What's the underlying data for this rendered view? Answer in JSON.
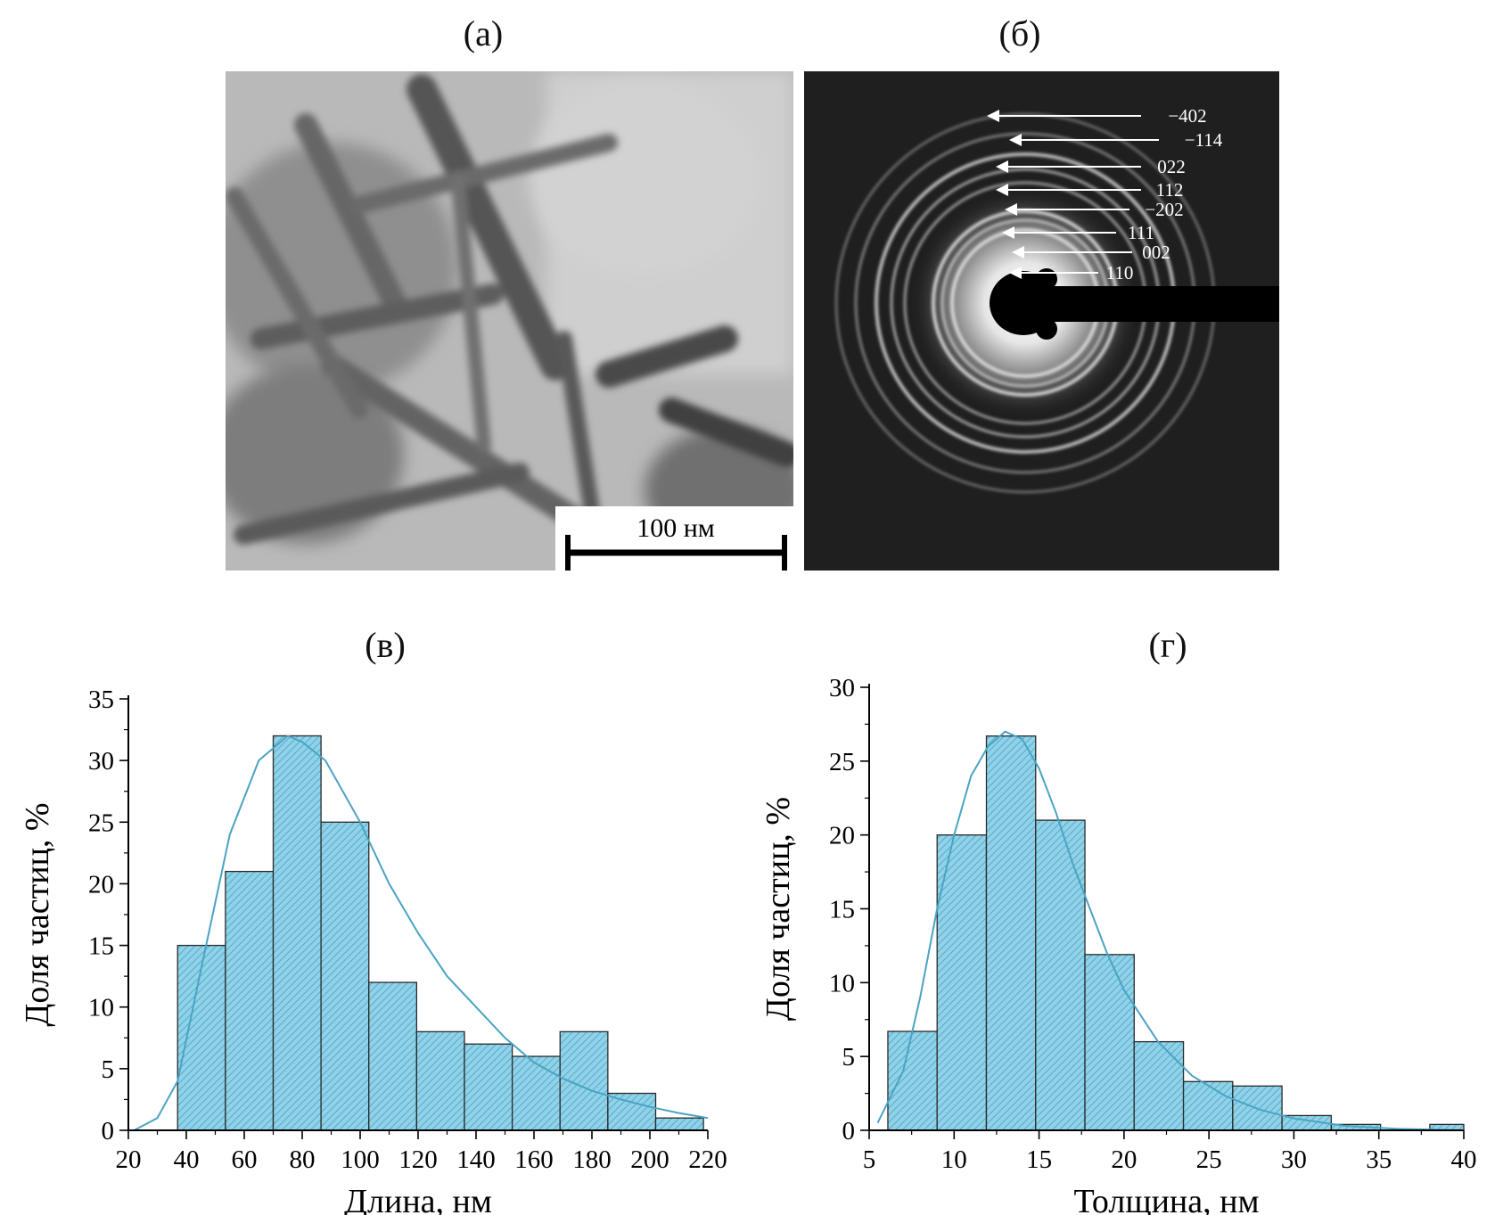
{
  "panels": {
    "a": {
      "label": "(а)",
      "scale_bar_label": "100 нм"
    },
    "b": {
      "label": "(б)",
      "ring_labels": [
        "−402",
        "−114",
        "022",
        "112",
        "−202",
        "111",
        "002",
        "110"
      ]
    },
    "c": {
      "label": "(в)"
    },
    "d": {
      "label": "(г)"
    }
  },
  "colors": {
    "bar_fill": "#8fd3ea",
    "bar_stroke": "#2a2a2a",
    "fit_curve": "#4aa3c4"
  },
  "chart_data": [
    {
      "type": "bar",
      "title": "(в)",
      "xlabel": "Длина, нм",
      "ylabel": "Доля частиц, %",
      "xlim": [
        20,
        220
      ],
      "ylim": [
        0,
        35
      ],
      "xticks": [
        20,
        40,
        60,
        80,
        100,
        120,
        140,
        160,
        180,
        200,
        220
      ],
      "yticks": [
        0,
        5,
        10,
        15,
        20,
        25,
        30,
        35
      ],
      "bin_edges": [
        37,
        53.5,
        70,
        86.5,
        103,
        119.5,
        136,
        152.5,
        169,
        185.5,
        202,
        218.5
      ],
      "values": [
        15,
        21,
        32,
        25,
        12,
        8,
        7,
        6,
        8,
        3,
        1
      ],
      "fit_curve": {
        "x": [
          22,
          30,
          37,
          45,
          55,
          65,
          75,
          80,
          88,
          100,
          110,
          120,
          130,
          140,
          150,
          160,
          170,
          180,
          190,
          200,
          210,
          220
        ],
        "y": [
          0,
          1,
          4,
          13,
          24,
          30,
          32,
          31.5,
          30,
          25,
          20,
          16,
          12.5,
          10,
          7.5,
          5.5,
          4.2,
          3.2,
          2.5,
          1.9,
          1.4,
          1
        ]
      }
    },
    {
      "type": "bar",
      "title": "(г)",
      "xlabel": "Толщина, нм",
      "ylabel": "Доля частиц, %",
      "xlim": [
        5,
        40
      ],
      "ylim": [
        0,
        30
      ],
      "xticks": [
        5,
        10,
        15,
        20,
        25,
        30,
        35,
        40
      ],
      "yticks": [
        0,
        5,
        10,
        15,
        20,
        25,
        30
      ],
      "bin_edges": [
        6.1,
        9,
        11.9,
        14.8,
        17.7,
        20.6,
        23.5,
        26.4,
        29.3,
        32.2,
        35.1,
        38,
        40
      ],
      "values": [
        6.7,
        20,
        26.7,
        21,
        11.9,
        6,
        3.3,
        3,
        1,
        0.4,
        0,
        0.4
      ],
      "fit_curve": {
        "x": [
          5.5,
          7,
          8,
          9,
          10,
          11,
          12,
          13,
          14,
          15,
          16,
          17,
          18,
          19,
          20,
          22,
          24,
          26,
          28,
          30,
          33,
          36,
          40
        ],
        "y": [
          0.5,
          4,
          9,
          15,
          20,
          24,
          26,
          27,
          26.5,
          24.5,
          21.5,
          18,
          15,
          12,
          9.5,
          6,
          3.7,
          2.3,
          1.4,
          0.8,
          0.3,
          0.1,
          0
        ]
      }
    }
  ]
}
